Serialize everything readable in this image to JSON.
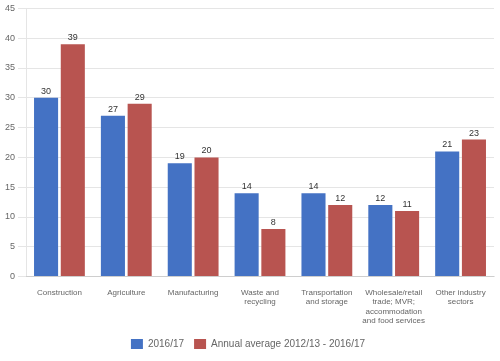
{
  "chart_data": {
    "type": "bar",
    "categories": [
      "Construction",
      "Agriculture",
      "Manufacturing",
      "Waste and\nrecycling",
      "Transportation\nand storage",
      "Wholesale/retail\ntrade; MVR;\naccommodation\nand food services",
      "Other industry\nsectors"
    ],
    "series": [
      {
        "name": "2016/17",
        "color": "#4472C4",
        "values": [
          30,
          27,
          19,
          14,
          14,
          12,
          21
        ]
      },
      {
        "name": "Annual average 2012/13 - 2016/17",
        "color": "#B85450",
        "values": [
          39,
          29,
          20,
          8,
          12,
          11,
          23
        ]
      }
    ],
    "ylim": [
      0,
      45
    ],
    "yticks": [
      0,
      5,
      10,
      15,
      20,
      25,
      30,
      35,
      40,
      45
    ],
    "grid": true,
    "legend": "bottom",
    "data_labels": true
  }
}
